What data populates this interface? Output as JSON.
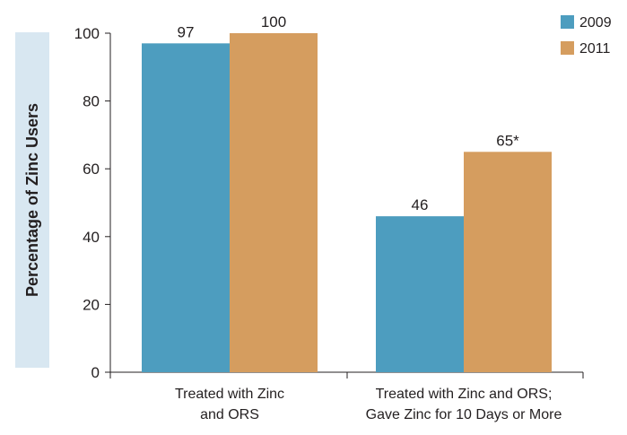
{
  "chart_data": {
    "type": "bar",
    "title": "",
    "xlabel": "",
    "ylabel": "Percentage of Zinc Users",
    "ylim": [
      0,
      100
    ],
    "yticks": [
      "0",
      "20",
      "40",
      "60",
      "80",
      "100"
    ],
    "categories": [
      [
        "Treated with Zinc",
        "and ORS"
      ],
      [
        "Treated with Zinc and ORS;",
        "Gave Zinc for 10 Days or More"
      ]
    ],
    "series": [
      {
        "name": "2009",
        "color": "#4d9dbf",
        "values": [
          97,
          46
        ],
        "labels": [
          "97",
          "46"
        ]
      },
      {
        "name": "2011",
        "color": "#d59d5f",
        "values": [
          100,
          65
        ],
        "labels": [
          "100",
          "65*"
        ]
      }
    ],
    "legend": "top-right",
    "ylabel_box_color": "#d8e7f1",
    "grid": false
  }
}
